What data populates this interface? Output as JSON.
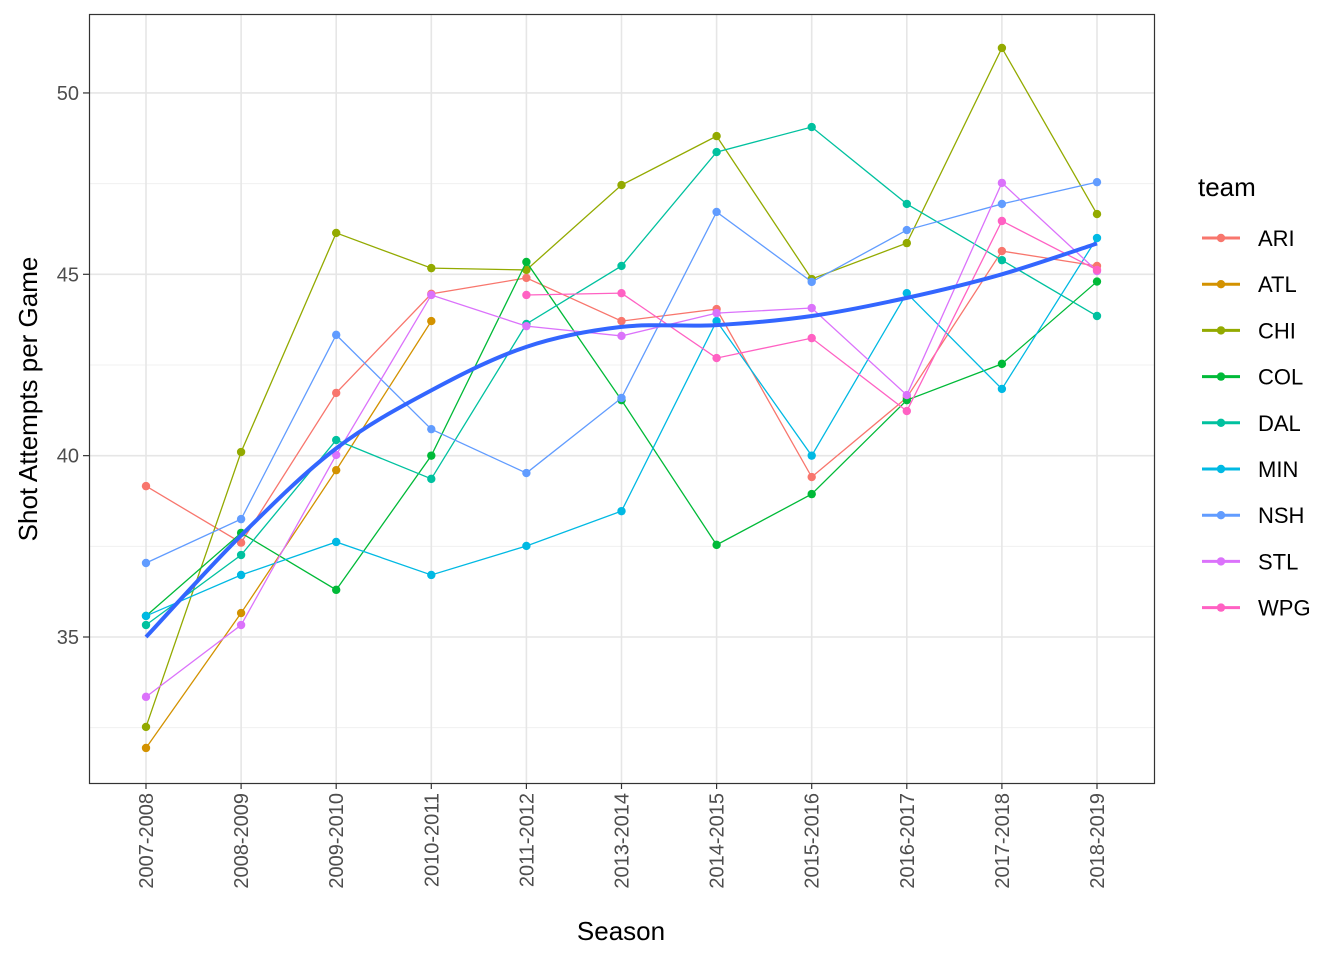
{
  "chart_data": {
    "type": "line",
    "title": "",
    "xlabel": "Season",
    "ylabel": "Shot Attempts per Game",
    "ylim": [
      31.0,
      52.2
    ],
    "yticks": [
      35,
      40,
      45,
      50
    ],
    "grid": true,
    "legend": {
      "title": "team",
      "placement": "right"
    },
    "categories": [
      "2007-2008",
      "2008-2009",
      "2009-2010",
      "2010-2011",
      "2011-2012",
      "2013-2014",
      "2014-2015",
      "2015-2016",
      "2016-2017",
      "2017-2018",
      "2018-2019"
    ],
    "series": [
      {
        "name": "ARI",
        "color": "#F8766D",
        "values": [
          39.16,
          37.6,
          41.73,
          44.46,
          44.9,
          43.71,
          44.04,
          39.41,
          41.6,
          45.64,
          45.23
        ]
      },
      {
        "name": "ATL",
        "color": "#D39200",
        "values": [
          31.94,
          35.66,
          39.6,
          43.71,
          null,
          null,
          null,
          null,
          null,
          null,
          null
        ]
      },
      {
        "name": "CHI",
        "color": "#93AA00",
        "values": [
          32.52,
          40.1,
          46.14,
          45.17,
          45.12,
          47.46,
          48.81,
          44.87,
          45.86,
          51.24,
          46.66
        ]
      },
      {
        "name": "COL",
        "color": "#00BA38",
        "values": [
          35.58,
          37.87,
          36.3,
          40.0,
          45.34,
          41.53,
          37.54,
          38.94,
          41.53,
          42.53,
          44.8
        ]
      },
      {
        "name": "DAL",
        "color": "#00C19F",
        "values": [
          35.33,
          37.26,
          40.43,
          39.36,
          43.63,
          45.23,
          48.37,
          49.06,
          46.94,
          45.39,
          43.85
        ]
      },
      {
        "name": "MIN",
        "color": "#00B9E3",
        "values": [
          35.58,
          36.71,
          37.62,
          36.71,
          37.51,
          38.47,
          43.71,
          40.0,
          44.48,
          41.84,
          46.0
        ]
      },
      {
        "name": "NSH",
        "color": "#619CFF",
        "values": [
          37.04,
          38.25,
          43.33,
          40.73,
          39.52,
          41.59,
          46.72,
          44.79,
          46.22,
          46.94,
          47.54
        ]
      },
      {
        "name": "STL",
        "color": "#DB72FB",
        "values": [
          33.35,
          35.33,
          40.02,
          44.43,
          43.57,
          43.3,
          43.93,
          44.07,
          41.67,
          47.52,
          45.09
        ]
      },
      {
        "name": "WPG",
        "color": "#FF61C3",
        "values": [
          null,
          null,
          null,
          null,
          44.43,
          44.48,
          42.69,
          43.24,
          41.23,
          46.47,
          45.12
        ]
      }
    ],
    "smooth": {
      "color": "#3366FF",
      "values": [
        35.0,
        37.8,
        40.2,
        41.8,
        43.0,
        43.55,
        43.6,
        43.85,
        44.35,
        45.0,
        45.85
      ]
    }
  }
}
